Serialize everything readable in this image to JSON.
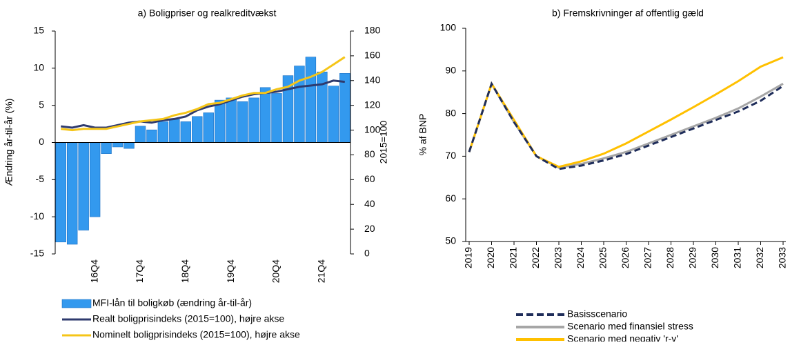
{
  "chart_data": [
    {
      "type": "bar",
      "title": "a) Boligpriser og realkreditvækst",
      "ylabel": "Ændring år-til-år (%)",
      "y2label": "2015=100",
      "categories": [
        null,
        null,
        null,
        "16Q4",
        null,
        null,
        null,
        "17Q4",
        null,
        null,
        null,
        "18Q4",
        null,
        null,
        null,
        "19Q4",
        null,
        null,
        null,
        "20Q4",
        null,
        null,
        null,
        "21Q4",
        null,
        null
      ],
      "series": [
        {
          "name": "MFI-lån til boligkøb (ændring år-til-år)",
          "type": "bar",
          "color": "#3399ee",
          "axis": "y",
          "values": [
            -13.4,
            -13.7,
            -11.8,
            -10.0,
            -1.5,
            -0.6,
            -0.8,
            2.2,
            1.7,
            2.8,
            3.1,
            2.8,
            3.5,
            4.0,
            5.7,
            6.0,
            5.5,
            6.0,
            7.4,
            6.6,
            9.0,
            10.3,
            11.5,
            9.5,
            7.6,
            9.3
          ]
        },
        {
          "name": "Realt boligprisindeks (2015=100), højre akse",
          "type": "line",
          "color": "#2e3a6e",
          "axis": "y2",
          "values": [
            103,
            102,
            104,
            102,
            102,
            104,
            106,
            107,
            106,
            108,
            109,
            111,
            116,
            119,
            121,
            124,
            127,
            129,
            130,
            131,
            133,
            135,
            136,
            137,
            140,
            139
          ]
        },
        {
          "name": "Nominelt boligprisindeks (2015=100), højre akse",
          "type": "line",
          "color": "#f5c518",
          "axis": "y2",
          "values": [
            101,
            100,
            101,
            101,
            101,
            103,
            105,
            107,
            108,
            109,
            112,
            114,
            117,
            121,
            122,
            125,
            128,
            130,
            130,
            133,
            135,
            140,
            143,
            147,
            153,
            159
          ]
        }
      ],
      "ylim": [
        -15,
        15
      ],
      "yticks": [
        -15,
        -10,
        -5,
        0,
        5,
        10,
        15
      ],
      "y2lim": [
        0,
        180
      ],
      "y2ticks": [
        0,
        20,
        40,
        60,
        80,
        100,
        120,
        140,
        160,
        180
      ]
    },
    {
      "type": "line",
      "title": "b) Fremskrivninger af offentlig gæld",
      "ylabel": "% af BNP",
      "categories": [
        "2019",
        "2020",
        "2021",
        "2022",
        "2023",
        "2024",
        "2025",
        "2026",
        "2027",
        "2028",
        "2029",
        "2030",
        "2031",
        "2032",
        "2033"
      ],
      "series": [
        {
          "name": "Basisscenario",
          "color": "#1f2d5a",
          "dashed": true,
          "values": [
            71,
            87,
            78,
            70,
            67,
            67.8,
            69,
            70.5,
            72.5,
            74.5,
            76.5,
            78.5,
            80.5,
            83,
            86.5
          ]
        },
        {
          "name": "Scenario med finansiel stress",
          "color": "#a6a6a6",
          "dashed": false,
          "values": [
            71,
            87,
            78,
            70,
            67.3,
            68.2,
            69.5,
            71,
            73,
            75,
            77,
            79,
            81.2,
            84,
            87
          ]
        },
        {
          "name": "Scenario med negativ 'r-v'",
          "color": "#ffc000",
          "dashed": false,
          "values": [
            71,
            87,
            78.5,
            70,
            67.5,
            68.8,
            70.6,
            73,
            75.8,
            78.6,
            81.5,
            84.5,
            87.6,
            91,
            93.2
          ]
        }
      ],
      "ylim": [
        50,
        100
      ],
      "yticks": [
        50,
        60,
        70,
        80,
        90,
        100
      ]
    }
  ]
}
